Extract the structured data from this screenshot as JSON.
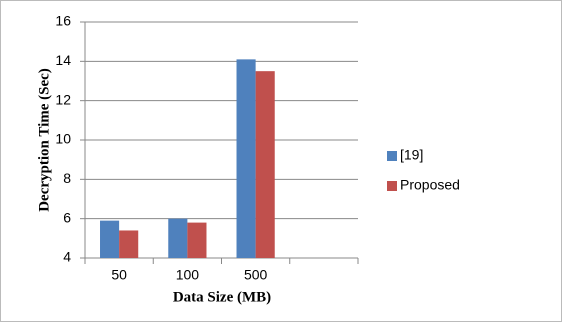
{
  "chart_data": {
    "type": "bar",
    "categories": [
      "50",
      "100",
      "500",
      null
    ],
    "series": [
      {
        "name": "[19]",
        "color": "#4f81bd",
        "values": [
          5.9,
          6.0,
          14.1,
          null
        ]
      },
      {
        "name": "Proposed",
        "color": "#c0504d",
        "values": [
          5.4,
          5.8,
          13.5,
          null
        ]
      }
    ],
    "ylim": [
      4,
      16
    ],
    "yticks": [
      4,
      6,
      8,
      10,
      12,
      14,
      16
    ],
    "grid": true,
    "xlabel": "Data Size (MB)",
    "ylabel": "Decryption Time (Sec)",
    "legend": "right"
  }
}
